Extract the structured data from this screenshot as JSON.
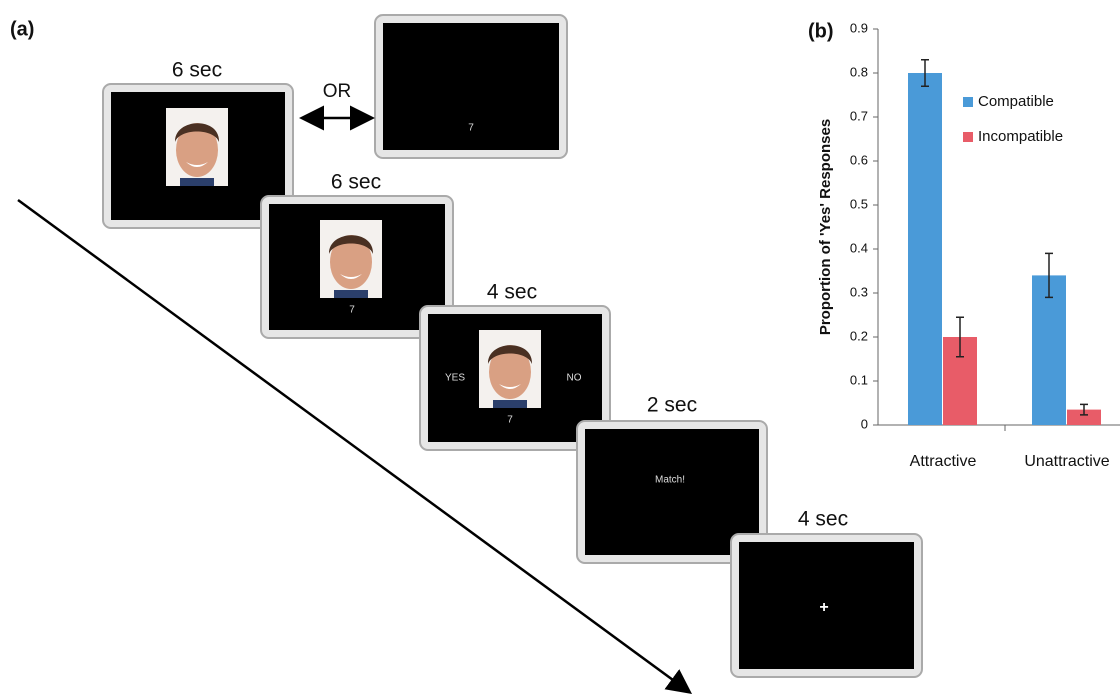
{
  "panel_a": {
    "label": "(a)",
    "screens": [
      {
        "duration": "6 sec"
      },
      {
        "text": "7"
      },
      {
        "duration": "6 sec",
        "text": "7"
      },
      {
        "duration": "4 sec",
        "left": "YES",
        "right": "NO",
        "text": "7"
      },
      {
        "duration": "2 sec",
        "text": "Match!"
      },
      {
        "duration": "4 sec",
        "text": "+"
      }
    ],
    "or": "OR"
  },
  "chart_data": {
    "type": "bar",
    "label": "(b)",
    "y_label": "Proportion of 'Yes' Responses",
    "categories": [
      "Attractive",
      "Unattractive"
    ],
    "series": [
      {
        "name": "Compatible",
        "color": "#4a9ad8",
        "values": [
          0.8,
          0.34
        ],
        "errors": [
          0.03,
          0.05
        ]
      },
      {
        "name": "Incompatible",
        "color": "#e85c68",
        "values": [
          0.2,
          0.035
        ],
        "errors": [
          0.045,
          0.012
        ]
      }
    ],
    "ylim": [
      0,
      0.9
    ],
    "yticks": [
      0,
      0.1,
      0.2,
      0.3,
      0.4,
      0.5,
      0.6,
      0.7,
      0.8,
      0.9
    ]
  }
}
